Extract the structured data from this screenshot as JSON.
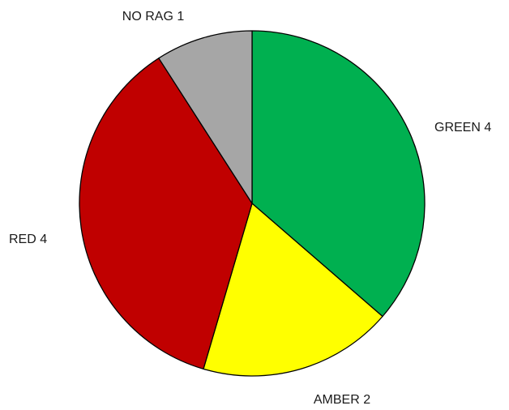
{
  "chart_data": {
    "type": "pie",
    "title": "",
    "start_angle_deg": 0,
    "direction": "clockwise",
    "legend": "none",
    "slices": [
      {
        "label": "GREEN",
        "value": 4,
        "display_label": "GREEN 4",
        "color": "#00B050"
      },
      {
        "label": "AMBER",
        "value": 2,
        "display_label": "AMBER 2",
        "color": "#FFFF00"
      },
      {
        "label": "RED",
        "value": 4,
        "display_label": "RED 4",
        "color": "#C00000"
      },
      {
        "label": "NO RAG",
        "value": 1,
        "display_label": "NO RAG 1",
        "color": "#A6A6A6"
      }
    ]
  }
}
